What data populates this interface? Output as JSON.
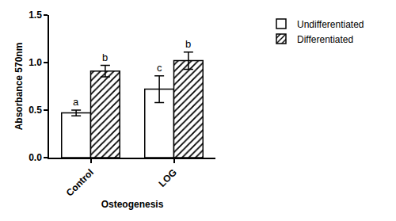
{
  "chart_data": {
    "type": "bar",
    "x_label": "Osteogenesis",
    "y_label": "Absorbance 570nm",
    "categories": [
      "Control",
      "LOG"
    ],
    "series": [
      {
        "name": "Undifferentiated",
        "color": "#ffffff",
        "marker": "solid",
        "values": [
          0.47,
          0.72
        ],
        "errors": [
          0.03,
          0.14
        ]
      },
      {
        "name": "Differentiated",
        "color": "#ffffff",
        "marker": "hatched",
        "values": [
          0.91,
          1.02
        ],
        "errors": [
          0.06,
          0.09
        ]
      }
    ],
    "annotations": [
      {
        "category": "Control",
        "series": "Undifferentiated",
        "text": "a"
      },
      {
        "category": "Control",
        "series": "Differentiated",
        "text": "b"
      },
      {
        "category": "LOG",
        "series": "Undifferentiated",
        "text": "c"
      },
      {
        "category": "LOG",
        "series": "Differentiated",
        "text": "b"
      }
    ],
    "ylim": [
      0,
      1.5
    ],
    "yticks": [
      {
        "value": 0,
        "label": "0.0"
      },
      0.5,
      {
        "value": 1,
        "label": "1.0"
      },
      1.5
    ],
    "grid": false,
    "legend": "top right"
  }
}
